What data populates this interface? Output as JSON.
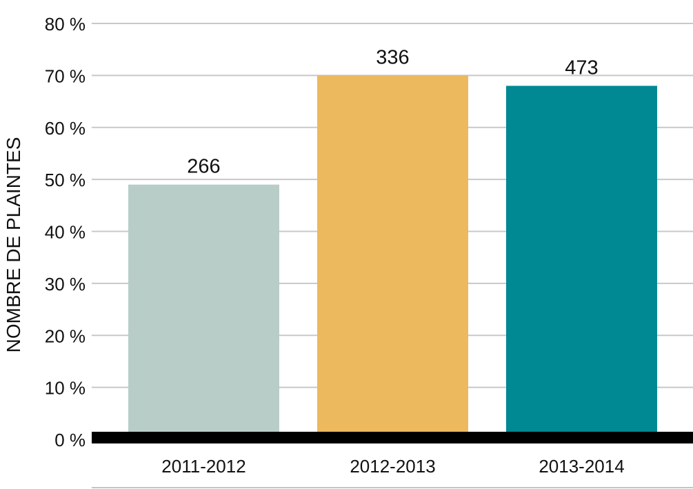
{
  "chart_data": {
    "type": "bar",
    "ylabel": "NOMBRE DE PLAINTES",
    "ylim": [
      0,
      80
    ],
    "yticks": [
      0,
      10,
      20,
      30,
      40,
      50,
      60,
      70,
      80
    ],
    "ytick_labels": [
      "0 %",
      "10 %",
      "20 %",
      "30 %",
      "40 %",
      "50 %",
      "60 %",
      "70 %",
      "80 %"
    ],
    "categories": [
      "2011-2012",
      "2012-2013",
      "2013-2014"
    ],
    "values": [
      49,
      70,
      68
    ],
    "data_labels": [
      "266",
      "336",
      "473"
    ],
    "colors": [
      "#b8cdc8",
      "#edb95e",
      "#008893"
    ],
    "grid": true,
    "legend": "none"
  }
}
